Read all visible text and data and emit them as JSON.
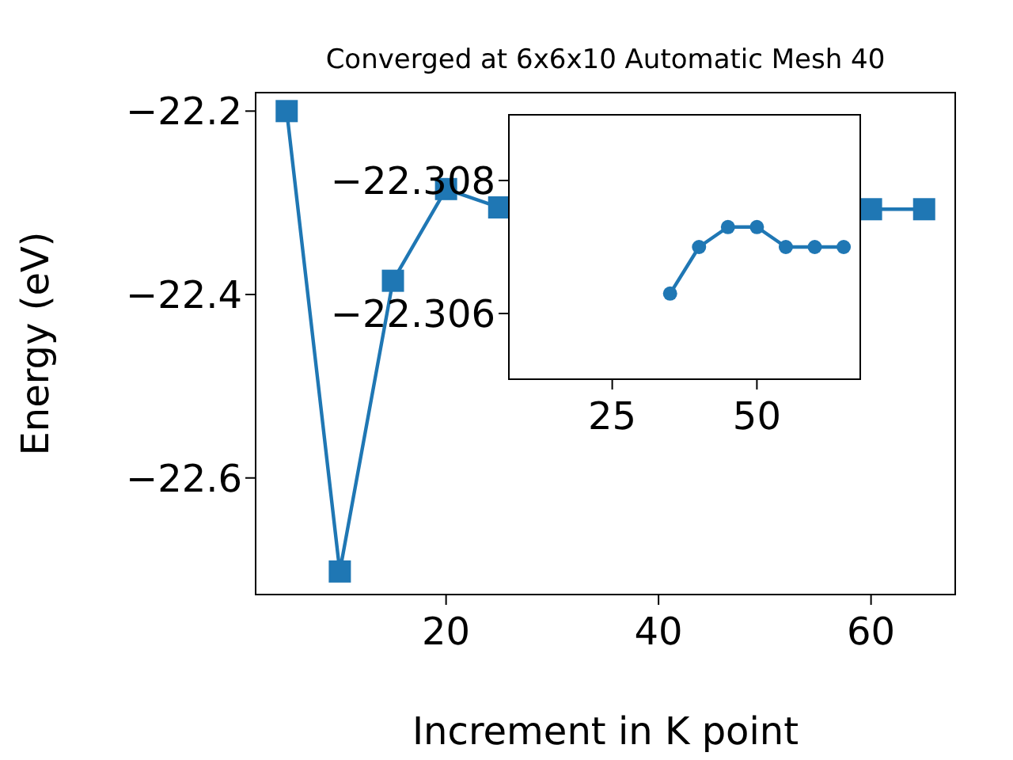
{
  "chart_data": [
    {
      "type": "line",
      "title": "Converged at 6x6x10 Automatic Mesh 40",
      "xlabel": "Increment in K point",
      "ylabel": "Energy (eV)",
      "x": [
        5,
        10,
        15,
        20,
        25,
        30,
        35,
        40,
        45,
        50,
        55,
        60,
        65
      ],
      "series": [
        {
          "color": "#1f77b4",
          "values": [
            -22.2,
            -22.702,
            -22.385,
            -22.285,
            -22.305,
            null,
            null,
            null,
            null,
            null,
            null,
            -22.307,
            -22.307
          ]
        }
      ],
      "xlim": [
        2,
        68
      ],
      "xticks": [
        20,
        40,
        60
      ],
      "ylim": [
        -22.728,
        -22.179
      ],
      "yticks": [
        {
          "value": -22.2,
          "label": "−22.2"
        },
        {
          "value": -22.4,
          "label": "−22.4"
        },
        {
          "value": -22.6,
          "label": "−22.6"
        }
      ],
      "marker": "square",
      "line_style": "solid",
      "grid": false,
      "legend": false
    },
    {
      "type": "line",
      "x": [
        35,
        40,
        45,
        50,
        55,
        60,
        65
      ],
      "series": [
        {
          "color": "#1f77b4",
          "values": [
            -22.3063,
            -22.307,
            -22.3073,
            -22.3073,
            -22.307,
            -22.307,
            -22.307
          ]
        }
      ],
      "xlim": [
        7,
        68
      ],
      "xticks": [
        25,
        50
      ],
      "ylim": [
        -22.305,
        -22.309
      ],
      "yticks": [
        {
          "value": -22.308,
          "label": "−22.308"
        },
        {
          "value": -22.306,
          "label": "−22.306"
        }
      ],
      "marker": "circle",
      "line_style": "solid",
      "grid": false,
      "legend": false
    }
  ]
}
